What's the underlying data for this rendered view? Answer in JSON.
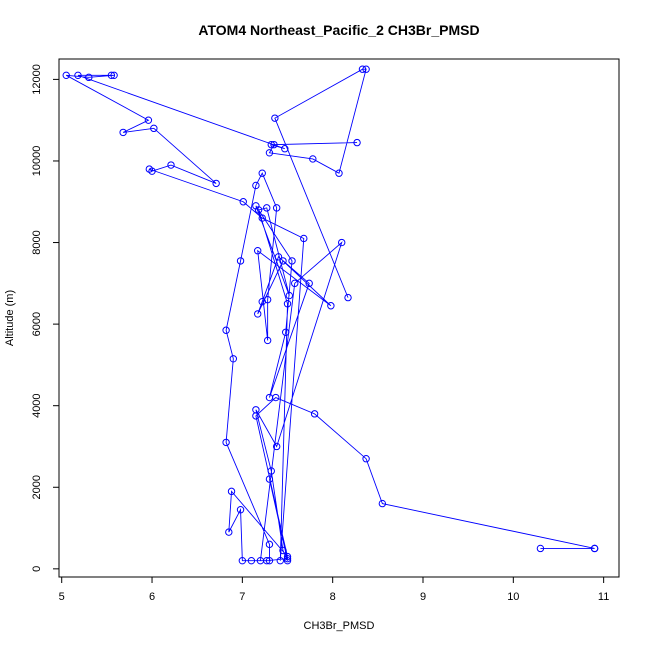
{
  "chart_data": {
    "type": "line",
    "title": "ATOM4 Northeast_Pacific_2 CH3Br_PMSD",
    "xlabel": "CH3Br_PMSD",
    "ylabel": "Altitude (m)",
    "xlim": [
      4.97,
      11.17
    ],
    "ylim": [
      -200,
      12500
    ],
    "xticks": [
      5,
      6,
      7,
      8,
      9,
      10,
      11
    ],
    "yticks": [
      0,
      2000,
      4000,
      6000,
      8000,
      10000,
      12000
    ],
    "grid": false,
    "marker": "open-circle",
    "color": "#0000ff",
    "x": [
      10.9,
      10.3,
      10.9,
      8.55,
      8.37,
      7.8,
      7.37,
      7.15,
      7.5,
      7.27,
      7.0,
      6.98,
      6.85,
      6.88,
      7.5,
      7.3,
      7.5,
      7.45,
      7.32,
      7.15,
      7.38,
      8.1,
      7.58,
      7.2,
      7.1,
      7.3,
      7.3,
      6.82,
      6.9,
      6.82,
      6.98,
      7.15,
      7.22,
      7.38,
      7.28,
      7.28,
      7.17,
      7.98,
      7.45,
      7.17,
      7.22,
      7.4,
      7.74,
      7.3,
      7.48,
      7.55,
      7.15,
      7.52,
      7.27,
      7.18,
      7.5,
      7.42,
      7.68,
      7.22,
      7.01,
      5.97,
      6.0,
      6.21,
      6.71,
      6.02,
      5.68,
      5.96,
      5.05,
      5.3,
      5.58,
      5.55,
      5.18,
      7.47,
      7.32,
      8.27,
      7.35,
      7.3,
      7.78,
      8.07,
      8.37,
      8.33,
      7.36,
      8.17
    ],
    "y": [
      500,
      500,
      500,
      1600,
      2700,
      3800,
      4200,
      3750,
      250,
      200,
      200,
      1450,
      900,
      1900,
      300,
      2200,
      200,
      450,
      2400,
      3900,
      3000,
      8000,
      7000,
      200,
      200,
      200,
      600,
      3100,
      5150,
      5850,
      7550,
      9400,
      9700,
      8850,
      6600,
      5600,
      7800,
      6450,
      7550,
      6250,
      6550,
      7650,
      7000,
      4200,
      5800,
      7550,
      8900,
      6700,
      8850,
      8800,
      6500,
      200,
      8100,
      8600,
      9000,
      9800,
      9750,
      9900,
      9450,
      10800,
      10700,
      11000,
      12100,
      12050,
      12100,
      12100,
      12100,
      10300,
      10400,
      10450,
      10400,
      10200,
      10050,
      9700,
      12250,
      12250,
      11050,
      6650
    ]
  }
}
